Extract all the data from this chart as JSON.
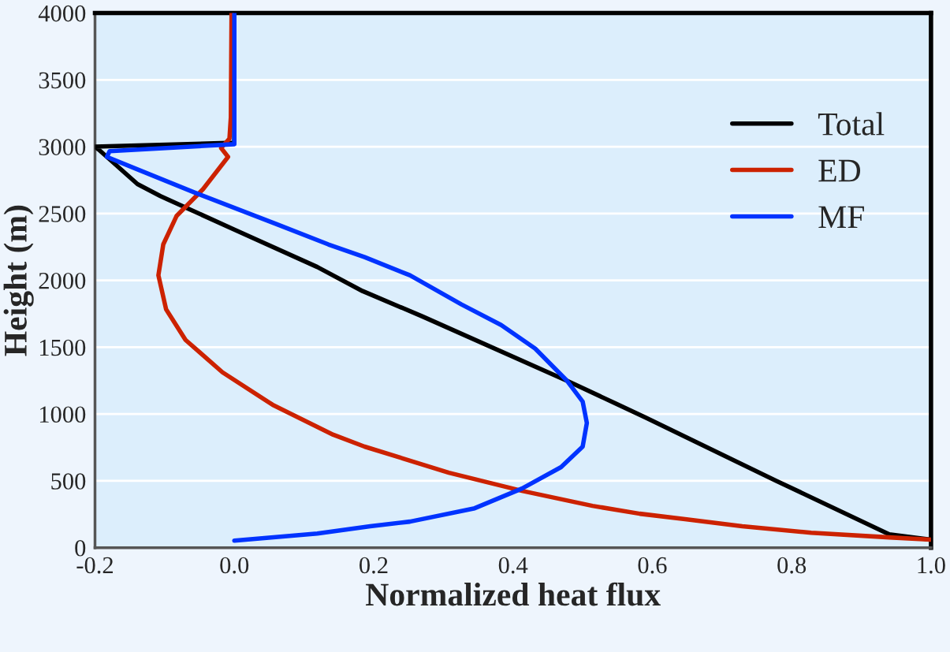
{
  "chart_data": {
    "type": "line",
    "xlabel": "Normalized heat flux",
    "ylabel": "Height (m)",
    "xlim": [
      -0.2,
      1.0
    ],
    "ylim": [
      0,
      4000
    ],
    "xticks": [
      {
        "value": -0.2,
        "label": "-0.2"
      },
      {
        "value": 0.0,
        "label": "0.0"
      },
      {
        "value": 0.2,
        "label": "0.2"
      },
      {
        "value": 0.4,
        "label": "0.4"
      },
      {
        "value": 0.6,
        "label": "0.6"
      },
      {
        "value": 0.8,
        "label": "0.8"
      },
      {
        "value": 1.0,
        "label": "1.0"
      }
    ],
    "yticks": [
      0,
      500,
      1000,
      1500,
      2000,
      2500,
      3000,
      3500,
      4000
    ],
    "grid": "y",
    "legend": "right",
    "line_style": "solid",
    "marker": "none",
    "series": [
      {
        "name": "Total",
        "color": "#000000",
        "x": [
          1.0,
          0.94,
          0.778,
          0.59,
          0.477,
          0.27,
          0.184,
          0.119,
          0.0,
          -0.106,
          -0.139,
          -0.195,
          -0.2,
          0.0,
          0.0
        ],
        "values": [
          60,
          100,
          500,
          975,
          1250,
          1730,
          1920,
          2100,
          2380,
          2630,
          2720,
          2980,
          3000,
          3030,
          4000
        ]
      },
      {
        "name": "ED",
        "color": "#cc2200",
        "x": [
          1.0,
          0.94,
          0.828,
          0.729,
          0.647,
          0.582,
          0.514,
          0.413,
          0.308,
          0.187,
          0.142,
          0.055,
          -0.017,
          -0.07,
          -0.098,
          -0.109,
          -0.102,
          -0.083,
          -0.045,
          -0.009,
          -0.019,
          -0.007,
          -0.005,
          -0.004
        ],
        "values": [
          60,
          77,
          112,
          160,
          213,
          254,
          313,
          425,
          561,
          756,
          845,
          1069,
          1312,
          1554,
          1784,
          2038,
          2269,
          2481,
          2682,
          2924,
          2990,
          3060,
          3220,
          4000
        ]
      },
      {
        "name": "MF",
        "color": "#0033ff",
        "x": [
          0.0,
          0.119,
          0.195,
          0.252,
          0.345,
          0.413,
          0.469,
          0.5,
          0.506,
          0.5,
          0.477,
          0.432,
          0.383,
          0.326,
          0.252,
          0.187,
          0.135,
          0.063,
          -0.058,
          -0.139,
          -0.183,
          -0.179,
          0.0,
          0.0
        ],
        "values": [
          53,
          106,
          160,
          195,
          295,
          443,
          603,
          756,
          933,
          1093,
          1252,
          1489,
          1666,
          1820,
          2038,
          2174,
          2269,
          2416,
          2659,
          2830,
          2924,
          2966,
          3019,
          4000
        ]
      }
    ]
  }
}
